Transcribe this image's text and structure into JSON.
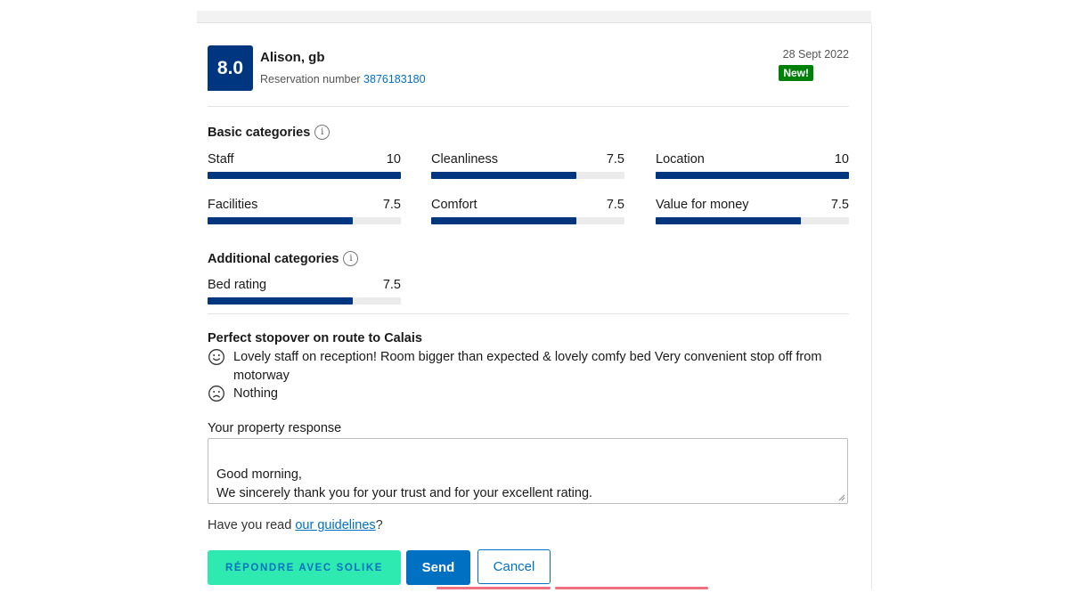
{
  "review": {
    "score": "8.0",
    "reviewer": "Alison, gb",
    "reservation_label": "Reservation number",
    "reservation_number": "3876183180",
    "date": "28 Sept 2022",
    "badge": "New!"
  },
  "basic_categories": {
    "title": "Basic categories",
    "items": [
      {
        "label": "Staff",
        "value": "10",
        "score": 10
      },
      {
        "label": "Cleanliness",
        "value": "7.5",
        "score": 7.5
      },
      {
        "label": "Location",
        "value": "10",
        "score": 10
      },
      {
        "label": "Facilities",
        "value": "7.5",
        "score": 7.5
      },
      {
        "label": "Comfort",
        "value": "7.5",
        "score": 7.5
      },
      {
        "label": "Value for money",
        "value": "7.5",
        "score": 7.5
      }
    ]
  },
  "additional_categories": {
    "title": "Additional categories",
    "items": [
      {
        "label": "Bed rating",
        "value": "7.5",
        "score": 7.5
      }
    ]
  },
  "score_max": 10,
  "comments": {
    "title": "Perfect stopover on route to Calais",
    "positive": "Lovely staff on reception! Room bigger than expected & lovely comfy bed Very convenient stop off from motorway",
    "negative": "Nothing"
  },
  "response": {
    "label": "Your property response",
    "text": "Good morning,\nWe sincerely thank you for your trust and for your excellent rating.\nWe would like to thank you very much for your very pleasant feedback, which we will be sure to pass on to our teams."
  },
  "guidelines": {
    "prefix": "Have you read ",
    "link": "our guidelines",
    "suffix": "?"
  },
  "buttons": {
    "solike": "RÉPONDRE AVEC SOLIKE",
    "send": "Send",
    "cancel": "Cancel"
  },
  "colors": {
    "score_bg": "#003580",
    "bar_fill": "#003580",
    "badge_bg": "#008009",
    "link": "#0071c2",
    "solike_bg": "#2ee9b0",
    "underline": "#f07080"
  },
  "icons": {
    "info": "info-circle-icon",
    "positive": "smiley-face-icon",
    "negative": "sad-face-icon"
  }
}
